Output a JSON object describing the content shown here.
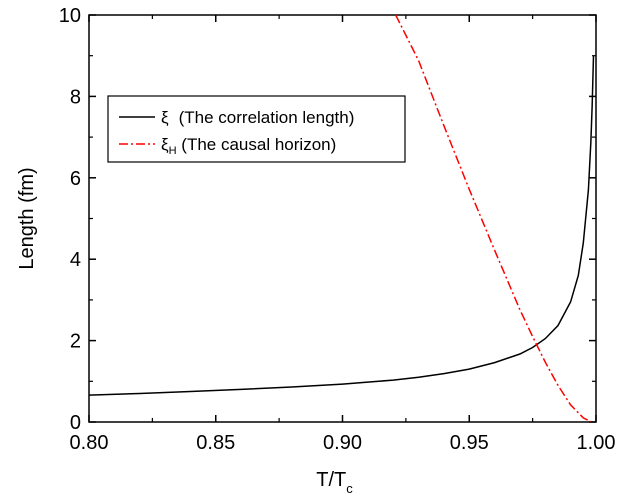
{
  "chart_data": {
    "type": "line",
    "xlabel": "T/T",
    "xlabel_sub": "c",
    "ylabel": "Length (fm)",
    "xlim": [
      0.8,
      1.0
    ],
    "ylim": [
      0,
      10
    ],
    "xticks": [
      "0.80",
      "0.85",
      "0.90",
      "0.95",
      "1.00"
    ],
    "yticks": [
      "0",
      "2",
      "4",
      "6",
      "8",
      "10"
    ],
    "grid": false,
    "legend_position": "upper-left",
    "series": [
      {
        "name": "ξ",
        "name_suffix": "(The correlation length)",
        "color": "#000000",
        "style": "solid",
        "x": [
          0.8,
          0.82,
          0.84,
          0.86,
          0.88,
          0.9,
          0.92,
          0.93,
          0.94,
          0.95,
          0.96,
          0.97,
          0.975,
          0.98,
          0.985,
          0.99,
          0.993,
          0.995,
          0.997,
          0.998,
          0.9985,
          0.999
        ],
        "y": [
          0.66,
          0.7,
          0.75,
          0.8,
          0.86,
          0.93,
          1.03,
          1.1,
          1.19,
          1.3,
          1.46,
          1.67,
          1.83,
          2.05,
          2.37,
          2.95,
          3.6,
          4.4,
          5.7,
          6.9,
          7.8,
          9.0
        ]
      },
      {
        "name": "ξ",
        "name_sub": "H",
        "name_suffix": "(The causal horizon)",
        "color": "#ff0000",
        "style": "dashdot",
        "x": [
          0.921,
          0.93,
          0.94,
          0.95,
          0.96,
          0.97,
          0.975,
          0.98,
          0.985,
          0.99,
          0.995,
          0.998
        ],
        "y": [
          10.0,
          8.88,
          7.28,
          5.72,
          4.22,
          2.76,
          2.1,
          1.47,
          0.9,
          0.42,
          0.1,
          0.01
        ]
      }
    ]
  }
}
